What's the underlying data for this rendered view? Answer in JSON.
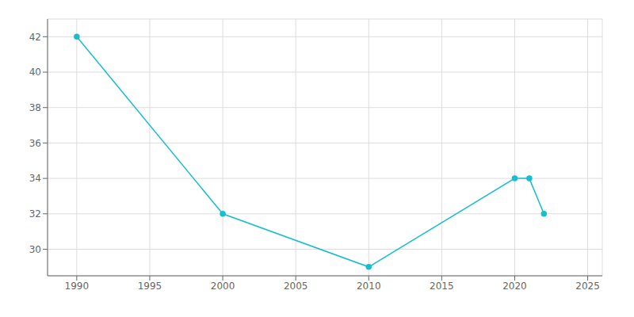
{
  "chart_data": {
    "type": "line",
    "x": [
      1990,
      2000,
      2010,
      2020,
      2021,
      2022
    ],
    "values": [
      42,
      32,
      29,
      34,
      34,
      32
    ],
    "color": "#17becf",
    "marker": "circle",
    "xlim": [
      1988,
      2026
    ],
    "ylim": [
      28.5,
      43
    ],
    "xticks": [
      1990,
      1995,
      2000,
      2005,
      2010,
      2015,
      2020,
      2025
    ],
    "yticks": [
      30,
      32,
      34,
      36,
      38,
      40,
      42
    ],
    "grid": true
  }
}
